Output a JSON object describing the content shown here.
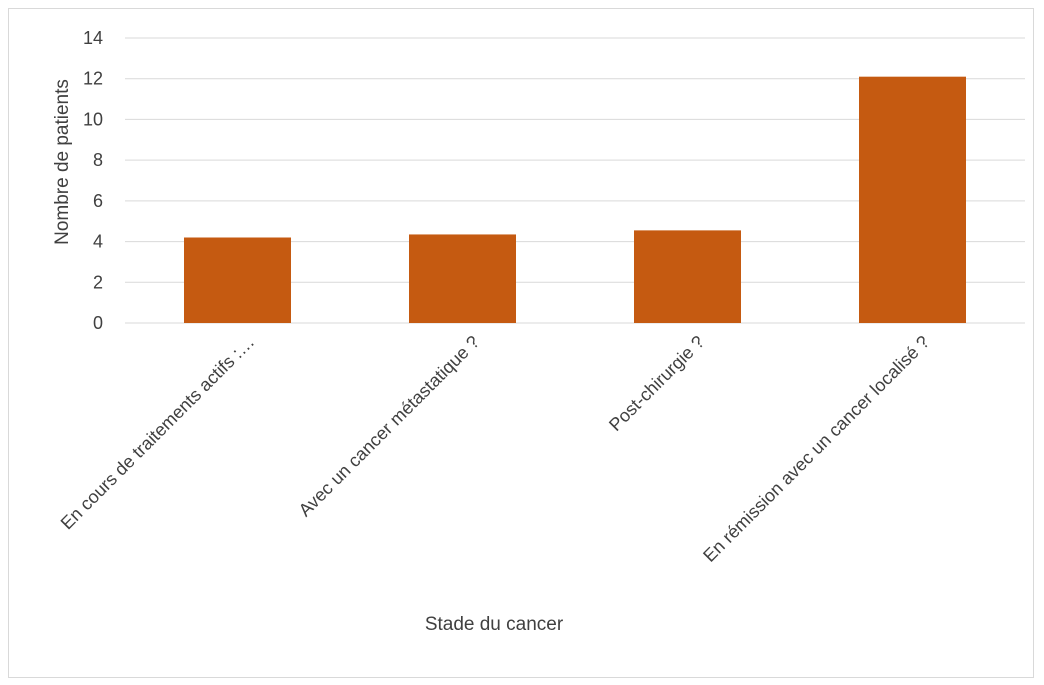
{
  "chart_data": {
    "type": "bar",
    "categories": [
      "En cours de traitements actifs :…",
      "Avec un cancer métastatique ?",
      "Post-chirurgie ?",
      "En rémission avec un cancer localisé ?"
    ],
    "values": [
      4.2,
      4.35,
      4.55,
      12.1
    ],
    "xlabel": "Stade du cancer",
    "ylabel": "Nombre de patients",
    "ylim": [
      0,
      14
    ],
    "yticks": [
      0,
      2,
      4,
      6,
      8,
      10,
      12,
      14
    ],
    "grid": true,
    "bar_color": "#c55a11",
    "grid_color": "#d9d9d9"
  }
}
